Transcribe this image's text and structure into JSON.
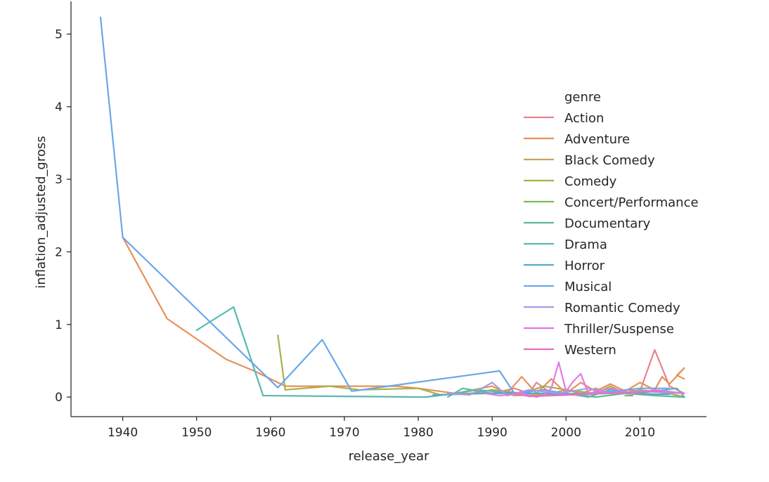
{
  "chart_data": {
    "type": "line",
    "xlabel": "release_year",
    "ylabel": "inflation_adjusted_gross",
    "xlim": [
      1933,
      2019
    ],
    "ylim": [
      -0.27,
      5.45
    ],
    "xticks": [
      1940,
      1950,
      1960,
      1970,
      1980,
      1990,
      2000,
      2010
    ],
    "yticks": [
      0,
      1,
      2,
      3,
      4,
      5
    ],
    "grid": false,
    "legend": {
      "title": "genre",
      "placement": "right"
    },
    "series": [
      {
        "name": "Action",
        "color": "#e8828f",
        "points": [
          [
            1981,
            0.0
          ],
          [
            1985,
            0.05
          ],
          [
            1990,
            0.05
          ],
          [
            1993,
            0.12
          ],
          [
            1995,
            0.05
          ],
          [
            1996,
            0.2
          ],
          [
            1998,
            0.05
          ],
          [
            2000,
            0.1
          ],
          [
            2002,
            0.05
          ],
          [
            2004,
            0.12
          ],
          [
            2006,
            0.05
          ],
          [
            2008,
            0.1
          ],
          [
            2010,
            0.08
          ],
          [
            2012,
            0.65
          ],
          [
            2014,
            0.15
          ],
          [
            2016,
            0.05
          ]
        ]
      },
      {
        "name": "Adventure",
        "color": "#e89058",
        "points": [
          [
            1940,
            2.2
          ],
          [
            1946,
            1.08
          ],
          [
            1950,
            0.8
          ],
          [
            1954,
            0.52
          ],
          [
            1958,
            0.35
          ],
          [
            1962,
            0.15
          ],
          [
            1970,
            0.15
          ],
          [
            1977,
            0.15
          ],
          [
            1980,
            0.12
          ],
          [
            1985,
            0.05
          ],
          [
            1990,
            0.15
          ],
          [
            1992,
            0.05
          ],
          [
            1994,
            0.28
          ],
          [
            1996,
            0.05
          ],
          [
            1998,
            0.25
          ],
          [
            2000,
            0.05
          ],
          [
            2002,
            0.2
          ],
          [
            2004,
            0.08
          ],
          [
            2006,
            0.18
          ],
          [
            2008,
            0.08
          ],
          [
            2010,
            0.2
          ],
          [
            2012,
            0.1
          ],
          [
            2013,
            0.28
          ],
          [
            2014,
            0.18
          ],
          [
            2016,
            0.4
          ],
          [
            2015,
            0.3
          ],
          [
            2016,
            0.25
          ]
        ]
      },
      {
        "name": "Black Comedy",
        "color": "#c9a45a",
        "points": [
          [
            1992,
            0.05
          ],
          [
            1993,
            0.02
          ],
          [
            2002,
            0.05
          ]
        ]
      },
      {
        "name": "Comedy",
        "color": "#a8b045",
        "points": [
          [
            1961,
            0.85
          ],
          [
            1962,
            0.1
          ],
          [
            1968,
            0.15
          ],
          [
            1972,
            0.1
          ],
          [
            1980,
            0.12
          ],
          [
            1983,
            0.03
          ],
          [
            1987,
            0.05
          ],
          [
            1990,
            0.1
          ],
          [
            1994,
            0.05
          ],
          [
            1997,
            0.15
          ],
          [
            2000,
            0.1
          ],
          [
            2004,
            0.05
          ],
          [
            2006,
            0.15
          ],
          [
            2008,
            0.05
          ],
          [
            2010,
            0.1
          ],
          [
            2014,
            0.05
          ],
          [
            2016,
            0.0
          ]
        ]
      },
      {
        "name": "Concert/Performance",
        "color": "#7cb85a",
        "points": [
          [
            2008,
            0.02
          ],
          [
            2009,
            0.02
          ]
        ]
      },
      {
        "name": "Documentary",
        "color": "#5fba98",
        "points": [
          [
            1984,
            0.0
          ],
          [
            1986,
            0.12
          ],
          [
            1990,
            0.05
          ],
          [
            1995,
            0.05
          ],
          [
            2000,
            0.05
          ],
          [
            2004,
            0.0
          ],
          [
            2008,
            0.05
          ],
          [
            2012,
            0.02
          ],
          [
            2016,
            0.0
          ]
        ]
      },
      {
        "name": "Drama",
        "color": "#58b8b0",
        "points": [
          [
            1950,
            0.92
          ],
          [
            1955,
            1.24
          ],
          [
            1959,
            0.02
          ],
          [
            1970,
            0.01
          ],
          [
            1981,
            0.0
          ],
          [
            1985,
            0.05
          ],
          [
            1988,
            0.1
          ],
          [
            1990,
            0.08
          ],
          [
            1993,
            0.05
          ],
          [
            1996,
            0.05
          ],
          [
            2000,
            0.05
          ],
          [
            2003,
            0.0
          ],
          [
            2006,
            0.1
          ],
          [
            2009,
            0.05
          ],
          [
            2012,
            0.08
          ],
          [
            2015,
            0.12
          ],
          [
            2016,
            0.0
          ]
        ]
      },
      {
        "name": "Horror",
        "color": "#5aa8c8",
        "points": [
          [
            1982,
            0.03
          ],
          [
            1986,
            0.04
          ],
          [
            1992,
            0.06
          ],
          [
            1996,
            0.05
          ],
          [
            2000,
            0.04
          ],
          [
            2004,
            0.05
          ],
          [
            2008,
            0.06
          ],
          [
            2012,
            0.04
          ],
          [
            2014,
            0.04
          ]
        ]
      },
      {
        "name": "Musical",
        "color": "#6aa8e8",
        "points": [
          [
            1937,
            5.23
          ],
          [
            1940,
            2.2
          ],
          [
            1961,
            0.13
          ],
          [
            1967,
            0.79
          ],
          [
            1971,
            0.08
          ],
          [
            1991,
            0.36
          ],
          [
            1993,
            0.05
          ],
          [
            1997,
            0.1
          ],
          [
            2001,
            0.03
          ],
          [
            2004,
            0.05
          ],
          [
            2010,
            0.12
          ],
          [
            2014,
            0.12
          ]
        ]
      },
      {
        "name": "Romantic Comedy",
        "color": "#a899e8",
        "points": [
          [
            1984,
            0.05
          ],
          [
            1987,
            0.03
          ],
          [
            1990,
            0.2
          ],
          [
            1992,
            0.02
          ],
          [
            1995,
            0.1
          ],
          [
            1999,
            0.05
          ],
          [
            2003,
            0.12
          ],
          [
            2006,
            0.05
          ],
          [
            2010,
            0.08
          ],
          [
            2016,
            0.05
          ]
        ]
      },
      {
        "name": "Thriller/Suspense",
        "color": "#e278e8",
        "points": [
          [
            1989,
            0.05
          ],
          [
            1991,
            0.02
          ],
          [
            1994,
            0.05
          ],
          [
            1996,
            0.0
          ],
          [
            1997,
            0.03
          ],
          [
            1998,
            0.12
          ],
          [
            1999,
            0.48
          ],
          [
            2000,
            0.08
          ],
          [
            2001,
            0.22
          ],
          [
            2002,
            0.32
          ],
          [
            2003,
            0.05
          ],
          [
            2006,
            0.12
          ],
          [
            2009,
            0.05
          ],
          [
            2012,
            0.1
          ],
          [
            2016,
            0.05
          ]
        ]
      },
      {
        "name": "Western",
        "color": "#e870c0",
        "points": [
          [
            1993,
            0.05
          ],
          [
            1995,
            0.01
          ],
          [
            1998,
            0.02
          ],
          [
            2003,
            0.04
          ],
          [
            2013,
            0.08
          ]
        ]
      }
    ]
  }
}
